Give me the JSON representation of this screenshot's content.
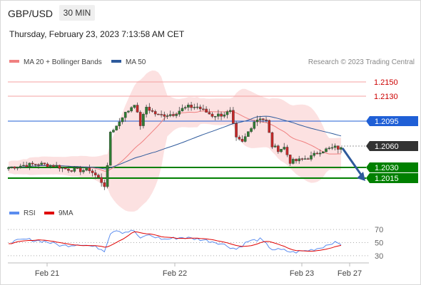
{
  "header": {
    "pair": "GBP/USD",
    "timeframe": "30 MIN",
    "datetime": "Thursday, February 23, 2023 7:13:58 AM CET"
  },
  "legend": {
    "ma20_label": "MA 20 + Bollinger Bands",
    "ma50_label": "MA 50",
    "ma20_color": "#f08080",
    "ma50_color": "#2e5a9c",
    "credit": "Research © 2023 Trading Central"
  },
  "rsi_legend": {
    "rsi_label": "RSI",
    "ma9_label": "9MA",
    "rsi_color": "#5b8def",
    "ma9_color": "#e00000"
  },
  "levels": [
    {
      "value": 1.215,
      "label": "1.2150",
      "kind": "resistance"
    },
    {
      "value": 1.213,
      "label": "1.2130",
      "kind": "resistance"
    },
    {
      "value": 1.2095,
      "label": "1.2095",
      "kind": "pivot"
    },
    {
      "value": 1.206,
      "label": "1.2060",
      "kind": "last"
    },
    {
      "value": 1.203,
      "label": "1.2030",
      "kind": "support"
    },
    {
      "value": 1.2015,
      "label": "1.2015",
      "kind": "support"
    }
  ],
  "colors": {
    "resistance": "#f4a0a0",
    "resistance_text": "#cc0000",
    "pivot": "#1f5fd6",
    "last": "#333333",
    "support": "#008000",
    "bands": "#fbdcdc",
    "candle_up": "#2e7d32",
    "candle_down": "#c62828",
    "arrow": "#2e5a9c"
  },
  "x_labels": [
    "Feb 21",
    "Feb 22",
    "Feb 23",
    "Feb 27"
  ],
  "rsi_ticks": [
    "70",
    "50",
    "30"
  ],
  "chart_data": {
    "type": "candlestick",
    "ylim": [
      1.198,
      1.217
    ],
    "x_axis": [
      "Feb 21",
      "Feb 22",
      "Feb 23",
      "Feb 27"
    ],
    "price_anchors": [
      [
        0,
        1.203
      ],
      [
        5,
        1.2033
      ],
      [
        10,
        1.2035
      ],
      [
        16,
        1.2032
      ],
      [
        19,
        1.2028
      ],
      [
        24,
        1.2026
      ],
      [
        27,
        1.2027
      ],
      [
        30,
        1.2015
      ],
      [
        32,
        1.2005
      ],
      [
        33,
        1.203
      ],
      [
        34,
        1.208
      ],
      [
        36,
        1.2088
      ],
      [
        38,
        1.2102
      ],
      [
        40,
        1.211
      ],
      [
        42,
        1.212
      ],
      [
        44,
        1.209
      ],
      [
        46,
        1.2115
      ],
      [
        48,
        1.2108
      ],
      [
        50,
        1.2103
      ],
      [
        55,
        1.2105
      ],
      [
        58,
        1.2112
      ],
      [
        60,
        1.2115
      ],
      [
        63,
        1.2115
      ],
      [
        65,
        1.211
      ],
      [
        68,
        1.2103
      ],
      [
        71,
        1.2104
      ],
      [
        74,
        1.2108
      ],
      [
        76,
        1.207
      ],
      [
        78,
        1.2065
      ],
      [
        80,
        1.208
      ],
      [
        82,
        1.2095
      ],
      [
        84,
        1.21
      ],
      [
        86,
        1.2095
      ],
      [
        88,
        1.206
      ],
      [
        90,
        1.2055
      ],
      [
        92,
        1.2058
      ],
      [
        94,
        1.2038
      ],
      [
        97,
        1.204
      ],
      [
        101,
        1.2045
      ],
      [
        104,
        1.2053
      ],
      [
        106,
        1.2055
      ],
      [
        109,
        1.2058
      ],
      [
        111,
        1.2056
      ]
    ],
    "forecast": {
      "from": 1.206,
      "to": 1.202
    },
    "rsi": {
      "ylim": [
        20,
        80
      ],
      "ticks": [
        70,
        50,
        30
      ],
      "rsi_anchors": [
        [
          0,
          50
        ],
        [
          6,
          55
        ],
        [
          12,
          52
        ],
        [
          18,
          45
        ],
        [
          24,
          48
        ],
        [
          30,
          42
        ],
        [
          32,
          38
        ],
        [
          34,
          65
        ],
        [
          36,
          70
        ],
        [
          38,
          66
        ],
        [
          42,
          68
        ],
        [
          44,
          55
        ],
        [
          46,
          62
        ],
        [
          52,
          55
        ],
        [
          58,
          58
        ],
        [
          64,
          55
        ],
        [
          70,
          50
        ],
        [
          76,
          40
        ],
        [
          80,
          52
        ],
        [
          84,
          55
        ],
        [
          88,
          40
        ],
        [
          92,
          38
        ],
        [
          95,
          35
        ],
        [
          100,
          38
        ],
        [
          104,
          42
        ],
        [
          108,
          50
        ],
        [
          111,
          48
        ]
      ]
    }
  }
}
